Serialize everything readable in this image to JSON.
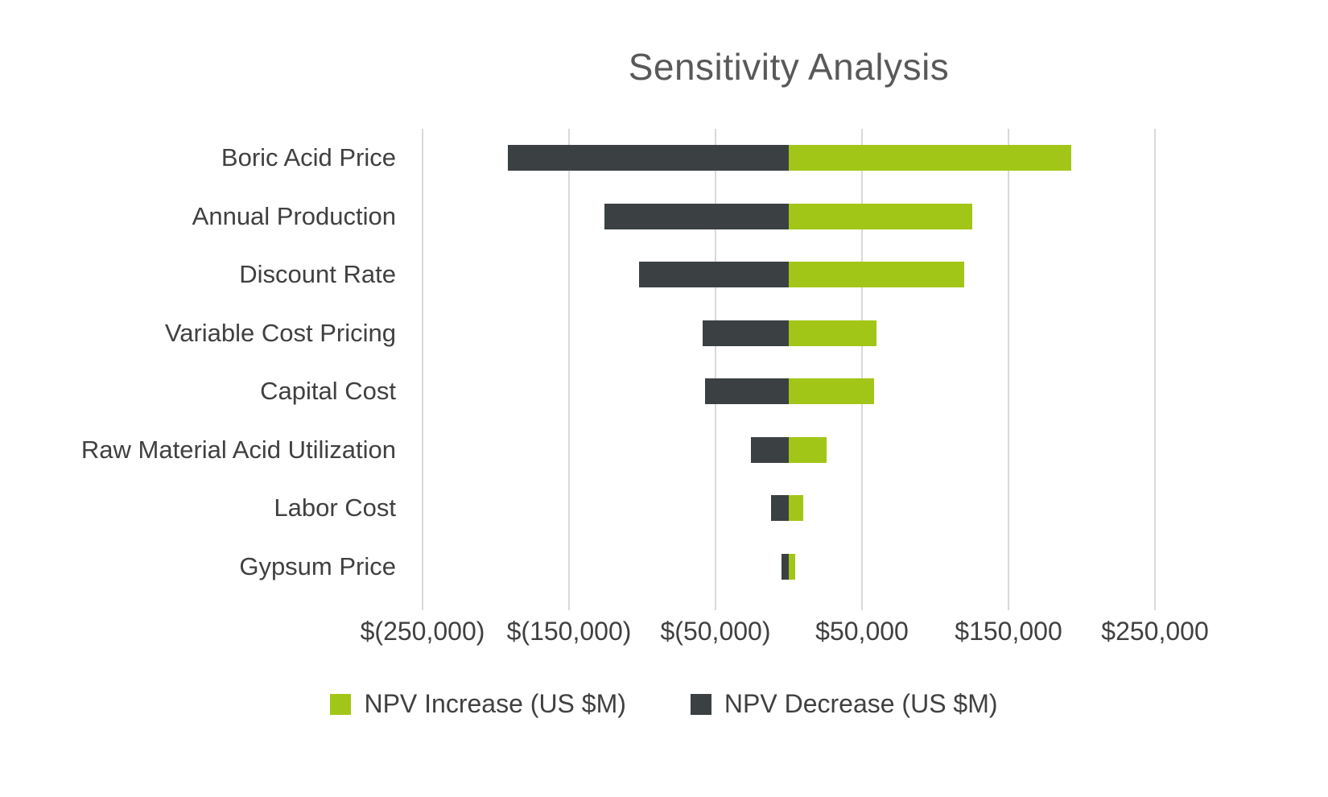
{
  "title": "Sensitivity Analysis",
  "colors": {
    "increase": "#a2c617",
    "decrease": "#3b4043",
    "gridline": "#d9d9d9",
    "text": "#404040",
    "title_text": "#595959"
  },
  "legend": [
    {
      "key": "increase",
      "label": "NPV Increase (US $M)",
      "color": "#a2c617"
    },
    {
      "key": "decrease",
      "label": "NPV Decrease (US $M)",
      "color": "#3b4043"
    }
  ],
  "chart_data": {
    "type": "bar",
    "orientation": "horizontal",
    "title": "Sensitivity Analysis",
    "categories": [
      "Boric Acid Price",
      "Annual Production",
      "Discount Rate",
      "Variable Cost Pricing",
      "Capital Cost",
      "Raw Material Acid Utilization",
      "Labor Cost",
      "Gypsum Price"
    ],
    "series": [
      {
        "name": "NPV Increase (US $M)",
        "color": "#a2c617",
        "values": [
          193000,
          125000,
          120000,
          60000,
          58000,
          26000,
          10000,
          4500
        ]
      },
      {
        "name": "NPV Decrease (US $M)",
        "color": "#3b4043",
        "values": [
          -192000,
          -126000,
          -102000,
          -59000,
          -57000,
          -26000,
          -12000,
          -5000
        ]
      }
    ],
    "xlim": [
      -250000,
      250000
    ],
    "x_ticks": [
      -250000,
      -150000,
      -50000,
      50000,
      150000,
      250000
    ],
    "x_tick_labels": [
      "$(250,000)",
      "$(150,000)",
      "$(50,000)",
      "$50,000",
      "$150,000",
      "$250,000"
    ],
    "xlabel": "",
    "ylabel": "",
    "grid": "vertical-only",
    "legend_position": "bottom"
  }
}
